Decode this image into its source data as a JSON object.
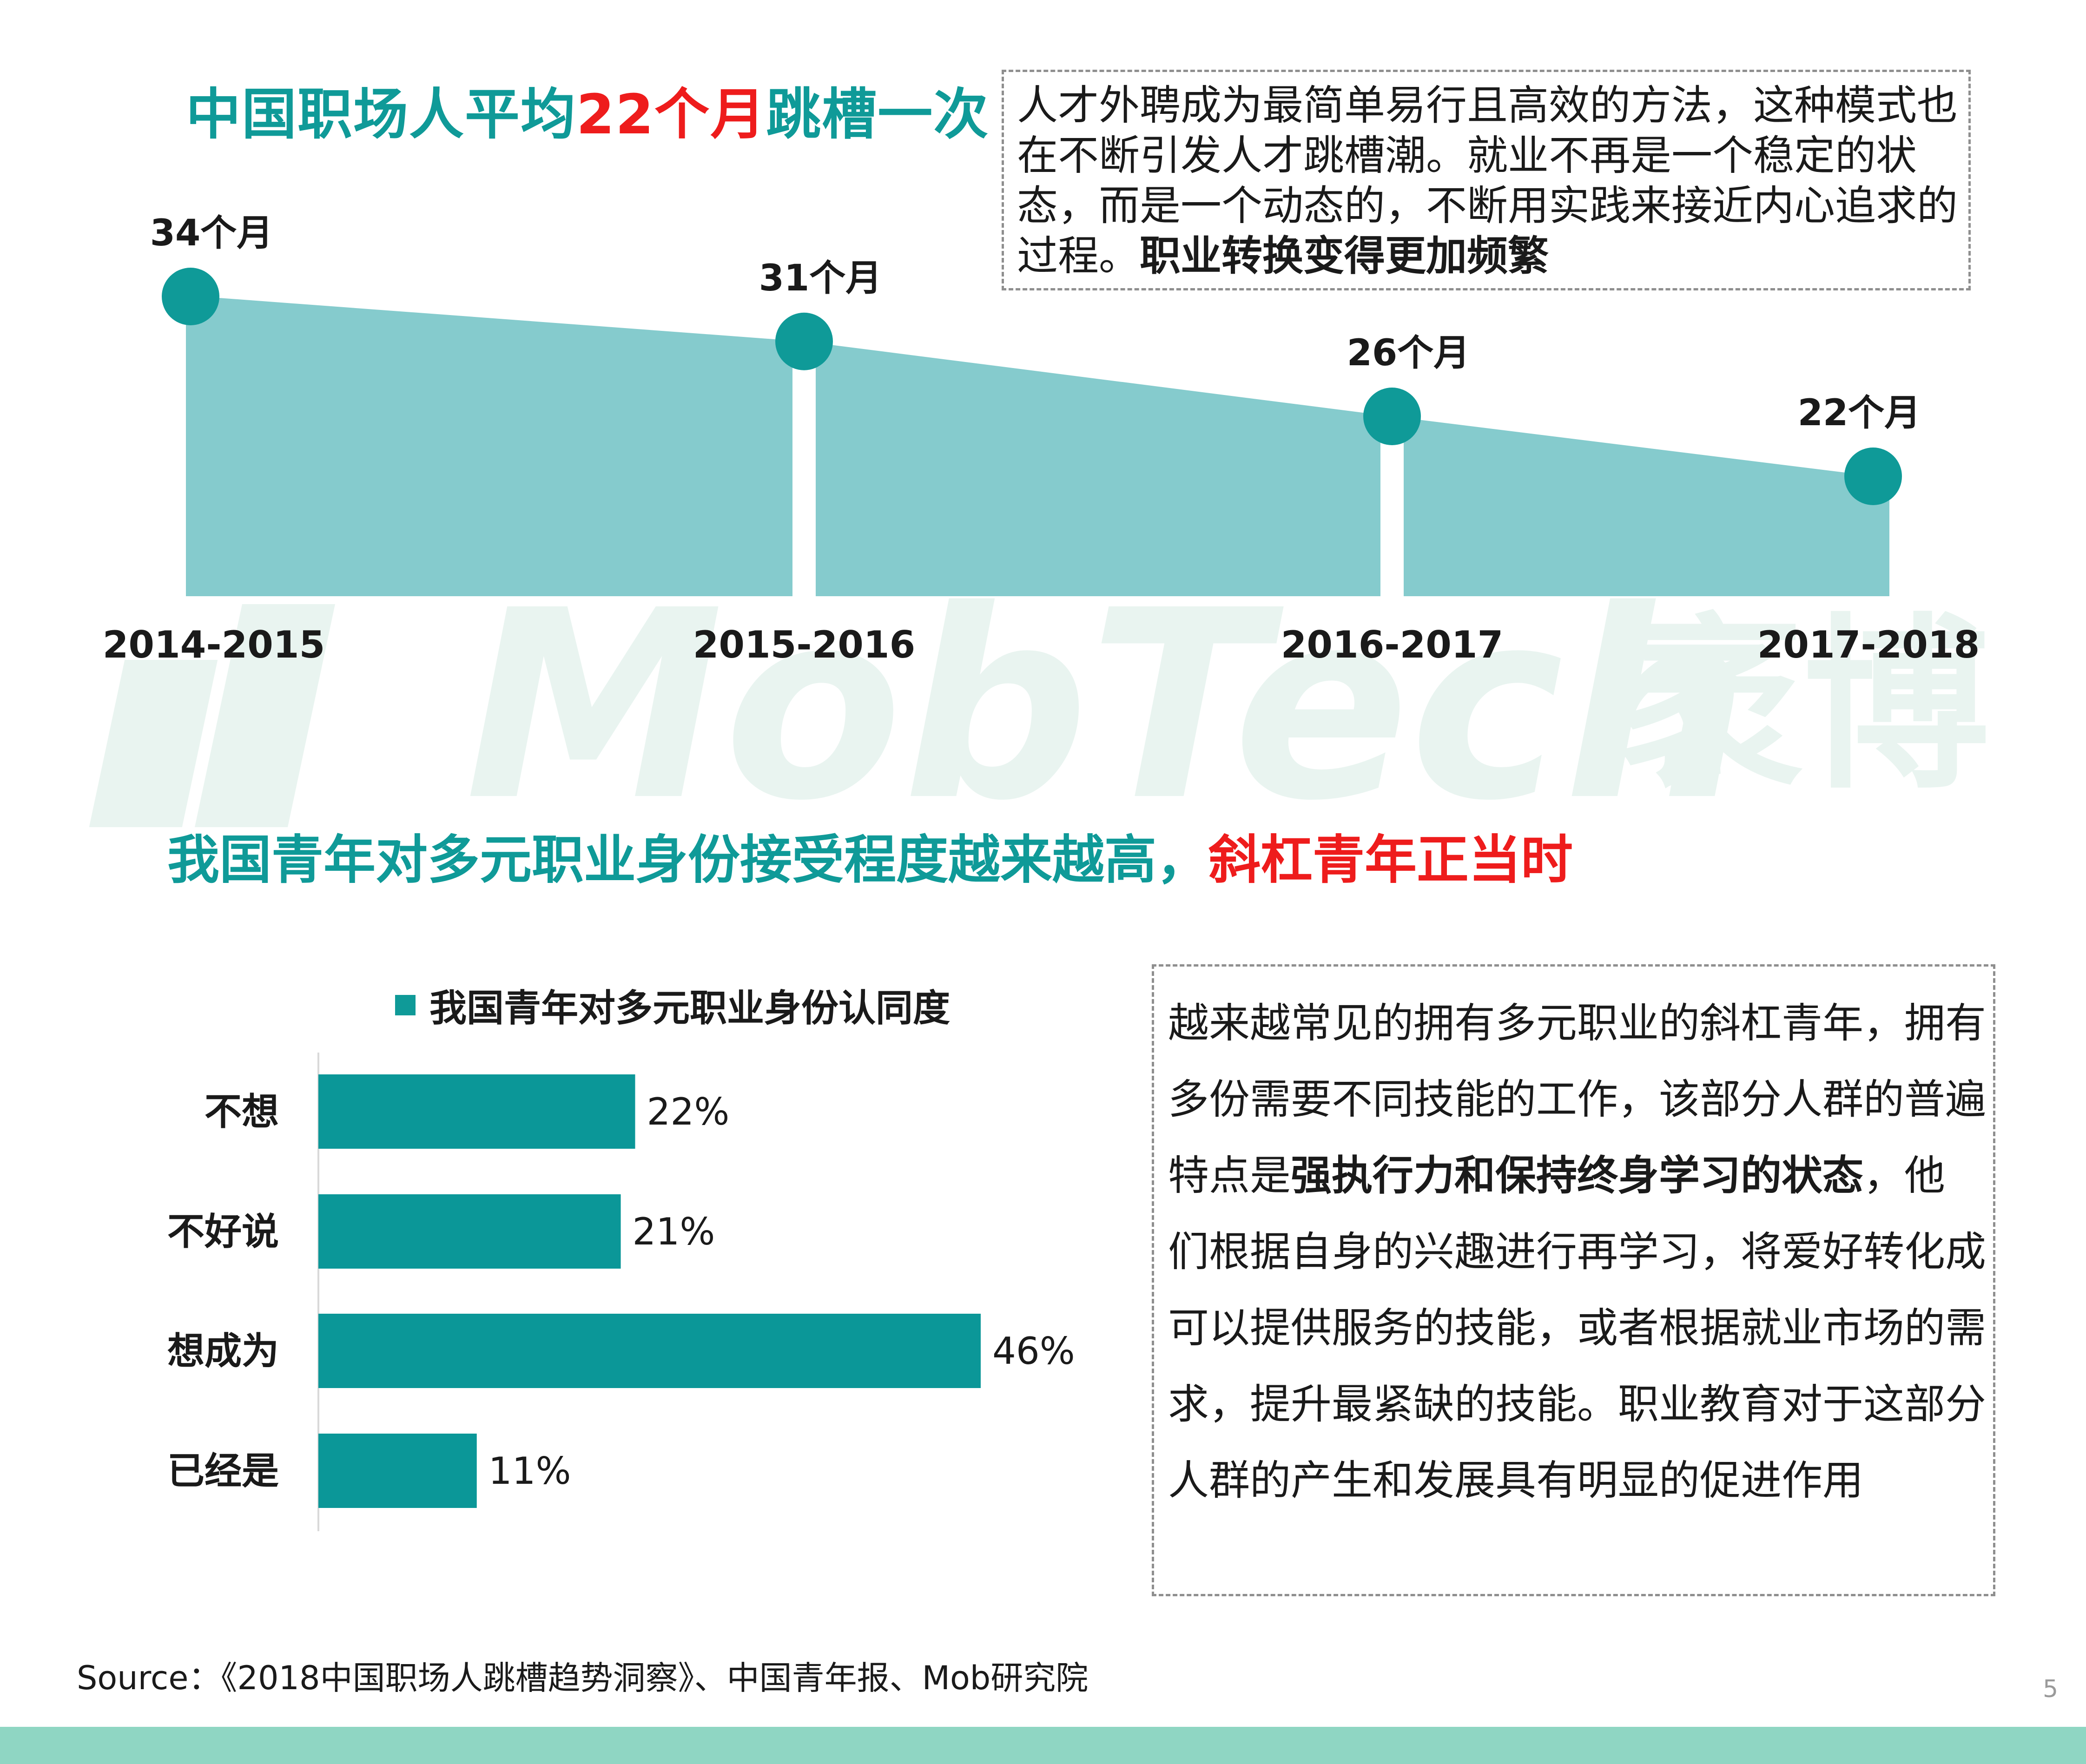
{
  "title_top": {
    "part1": "中国职场人平均",
    "part2": "22个月",
    "part3": "跳槽一次"
  },
  "box_top": {
    "text": "人才外聘成为最简单易行且高效的方法，这种模式也在不断引发人才跳槽潮。就业不再是一个稳定的状态，而是一个动态的，不断用实践来接近内心追求的过程。",
    "bold_text": "职业转换变得更加频繁"
  },
  "title_mid": {
    "part1": "我国青年对多元职业身份接受程度越来越高，",
    "part2": "斜杠青年正当时"
  },
  "box_bottom": {
    "text1": "越来越常见的拥有多元职业的斜杠青年，拥有多份需要不同技能的工作，该部分人群的普遍特点是",
    "bold_text": "强执行力和保持终身学习的状态",
    "text2": "，他们根据自身的兴趣进行再学习，将爱好转化成可以提供服务的技能，或者根据就业市场的需求，提升最紧缺的技能。职业教育对于这部分人群的产生和发展具有明显的促进作用"
  },
  "watermark": {
    "text": "MobTech",
    "cn": "袤博"
  },
  "source": "Source：《2018中国职场人跳槽趋势洞察》、中国青年报、Mob研究院",
  "page_number": "5",
  "colors": {
    "teal": "#0f9a98",
    "area": "#85cbcd",
    "bar": "#0b9798",
    "red": "#ee1c1c",
    "bottom_bar": "#8fd6c3"
  },
  "chart_data": [
    {
      "type": "area",
      "categories": [
        "2014-2015",
        "2015-2016",
        "2016-2017",
        "2017-2018"
      ],
      "values": [
        34,
        31,
        26,
        22
      ],
      "value_labels": [
        "34个月",
        "31个月",
        "26个月",
        "22个月"
      ],
      "ylim": [
        0,
        34
      ]
    },
    {
      "type": "bar",
      "orientation": "horizontal",
      "series": [
        {
          "name": "我国青年对多元职业身份认同度",
          "values": [
            22,
            21,
            46,
            11
          ]
        }
      ],
      "categories": [
        "不想",
        "不好说",
        "想成为",
        "已经是"
      ],
      "value_labels": [
        "22%",
        "21%",
        "46%",
        "11%"
      ],
      "xlim": [
        0,
        46
      ],
      "legend": "top"
    }
  ]
}
